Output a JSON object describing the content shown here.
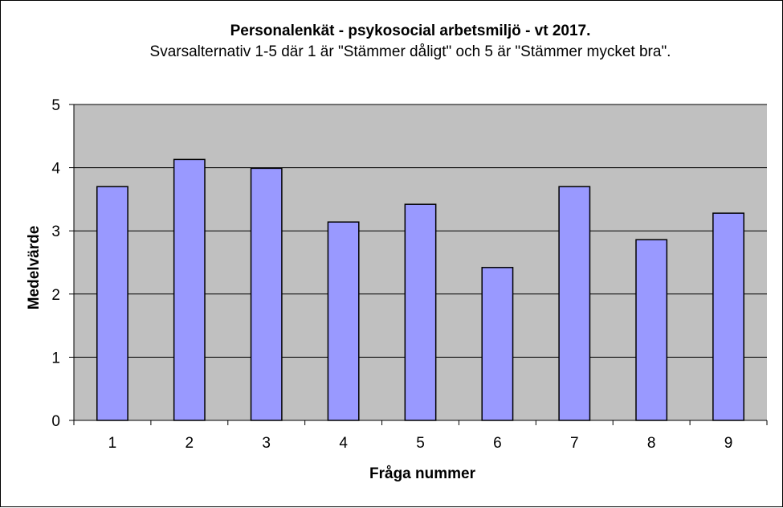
{
  "colors": {
    "plot_background": "#c0c0c0",
    "bar_fill": "#9999ff",
    "bar_stroke": "#000000",
    "gridline": "#000000"
  },
  "chart_data": {
    "type": "bar",
    "title": "Personalenkät - psykosocial arbetsmiljö - vt 2017.",
    "subtitle": "Svarsalternativ 1-5 där 1 är \"Stämmer dåligt\" och 5 är \"Stämmer mycket bra\".",
    "xlabel": "Fråga nummer",
    "ylabel": "Medelvärde",
    "categories": [
      "1",
      "2",
      "3",
      "4",
      "5",
      "6",
      "7",
      "8",
      "9"
    ],
    "values": [
      3.7,
      4.13,
      3.99,
      3.14,
      3.42,
      2.42,
      3.7,
      2.86,
      3.28
    ],
    "ylim": [
      0,
      5
    ],
    "yticks": [
      "0",
      "1",
      "2",
      "3",
      "4",
      "5"
    ],
    "grid": "horizontal major gridlines",
    "legend": "none"
  }
}
